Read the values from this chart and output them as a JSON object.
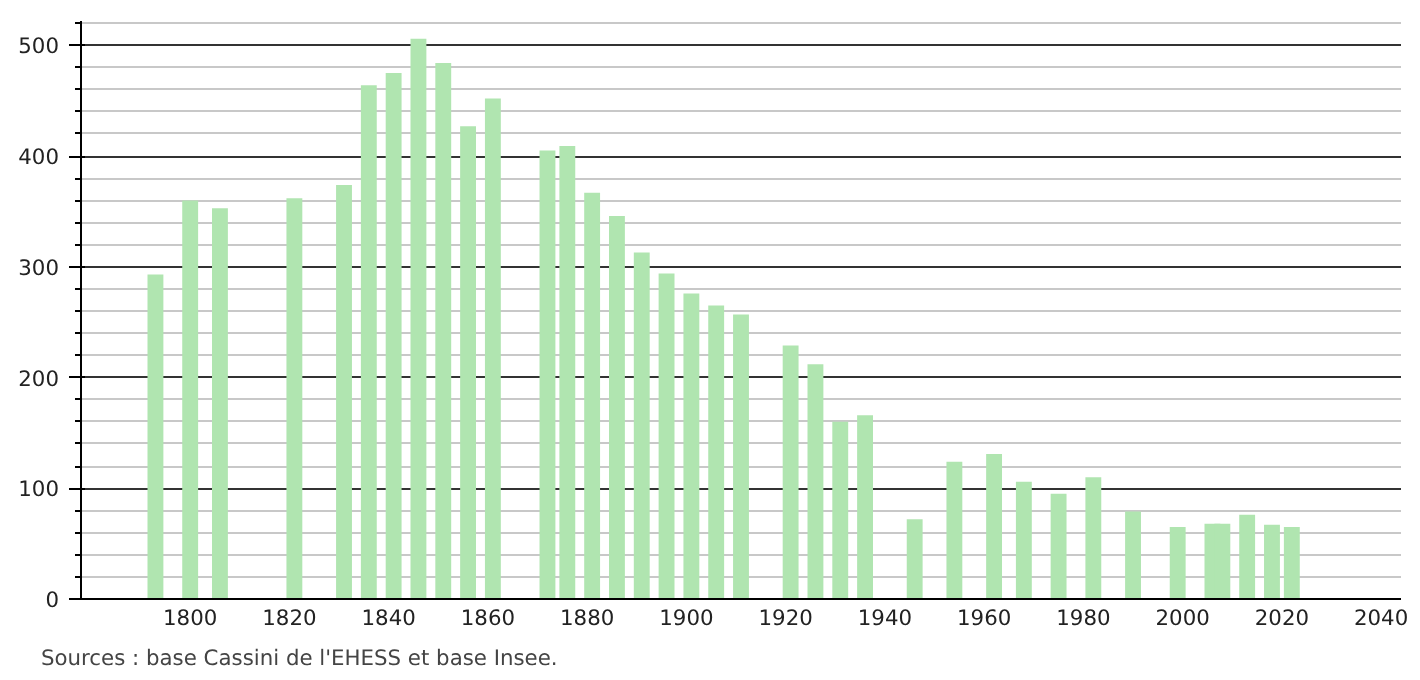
{
  "chart_data": {
    "type": "bar",
    "x": [
      1793,
      1800,
      1806,
      1821,
      1831,
      1836,
      1841,
      1846,
      1851,
      1856,
      1861,
      1872,
      1876,
      1881,
      1886,
      1891,
      1896,
      1901,
      1906,
      1911,
      1921,
      1926,
      1931,
      1936,
      1946,
      1954,
      1962,
      1968,
      1975,
      1982,
      1990,
      1999,
      2006,
      2008,
      2013,
      2018,
      2022
    ],
    "values": [
      293,
      360,
      353,
      362,
      374,
      464,
      475,
      506,
      484,
      427,
      452,
      405,
      409,
      367,
      346,
      313,
      294,
      276,
      265,
      257,
      229,
      212,
      160,
      166,
      72,
      124,
      131,
      106,
      95,
      110,
      79,
      65,
      68,
      68,
      76,
      67,
      65
    ],
    "color": "#b0e5b0",
    "xlim": [
      1778,
      2044
    ],
    "xticks": [
      1800,
      1820,
      1840,
      1860,
      1880,
      1900,
      1920,
      1940,
      1960,
      1980,
      2000,
      2020,
      2040
    ],
    "ylim": [
      0,
      522
    ],
    "yticks": [
      0,
      100,
      200,
      300,
      400,
      500
    ],
    "grid": "y",
    "annotations": [
      "Sources : base Cassini de l'EHESS et base Insee."
    ]
  }
}
